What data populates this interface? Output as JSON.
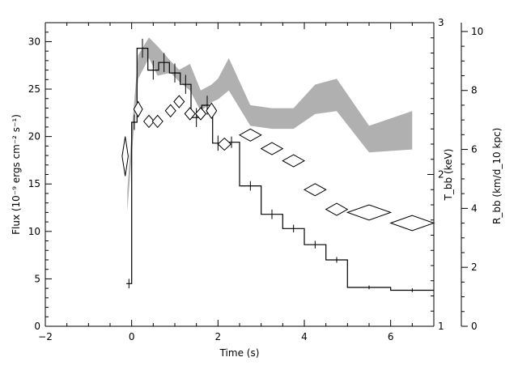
{
  "chart_data": {
    "type": "line",
    "xlabel": "Time (s)",
    "ylabel_left": "Flux (10⁻⁹ ergs cm⁻² s⁻¹)",
    "ylabel_right_inner": "T_bb (keV)",
    "ylabel_right_outer": "R_bb (km/d_10 kpc)",
    "xlim": [
      -2,
      7
    ],
    "ylim_left": [
      0,
      32
    ],
    "ylim_right_inner": [
      1,
      3
    ],
    "ylim_right_outer": [
      0,
      10.3
    ],
    "x_ticks": [
      -2,
      0,
      2,
      4,
      6
    ],
    "y_ticks_left": [
      0,
      5,
      10,
      15,
      20,
      25,
      30
    ],
    "y_ticks_right_inner": [
      1,
      2,
      3
    ],
    "y_ticks_right_outer": [
      0,
      2,
      4,
      6,
      8,
      10
    ],
    "grid": false,
    "flux_series": {
      "edges": [
        -0.125,
        0.0,
        0.125,
        0.375,
        0.625,
        0.875,
        1.125,
        1.375,
        1.625,
        1.875,
        2.125,
        2.5,
        3.0,
        3.5,
        4.0,
        4.5,
        5.0,
        6.0,
        7.0
      ],
      "values": [
        4.5,
        21.5,
        29.3,
        27.0,
        27.8,
        26.7,
        25.5,
        22.0,
        23.3,
        19.3,
        19.4,
        14.8,
        11.8,
        10.3,
        8.6,
        7.0,
        4.1,
        3.8
      ],
      "errors": [
        0.5,
        0.8,
        1.0,
        1.0,
        1.0,
        1.0,
        1.0,
        1.0,
        1.0,
        0.8,
        0.6,
        0.5,
        0.5,
        0.4,
        0.4,
        0.3,
        0.2,
        0.2
      ]
    },
    "kT_series": {
      "x": [
        -0.15,
        0.15,
        0.4,
        0.6,
        0.9,
        1.1,
        1.35,
        1.6,
        1.85,
        2.15,
        2.75,
        3.25,
        3.75,
        4.25,
        4.75,
        5.5,
        6.5
      ],
      "y": [
        2.12,
        2.43,
        2.35,
        2.35,
        2.42,
        2.48,
        2.4,
        2.4,
        2.42,
        2.2,
        2.26,
        2.17,
        2.09,
        1.9,
        1.77,
        1.75,
        1.68
      ],
      "dx": [
        0.07,
        0.1,
        0.12,
        0.12,
        0.12,
        0.12,
        0.12,
        0.12,
        0.12,
        0.15,
        0.25,
        0.25,
        0.25,
        0.25,
        0.25,
        0.5,
        0.5
      ],
      "dy": [
        0.13,
        0.05,
        0.04,
        0.04,
        0.04,
        0.04,
        0.04,
        0.04,
        0.05,
        0.04,
        0.04,
        0.04,
        0.04,
        0.04,
        0.04,
        0.05,
        0.05
      ]
    },
    "radius_band": {
      "x": [
        -0.1,
        0.0,
        0.15,
        0.4,
        0.6,
        0.9,
        1.1,
        1.35,
        1.6,
        1.85,
        2.0,
        2.25,
        2.75,
        3.25,
        3.75,
        4.25,
        4.75,
        5.5,
        6.5
      ],
      "lower": [
        3.9,
        5.8,
        8.4,
        9.1,
        8.5,
        8.6,
        8.3,
        8.0,
        7.3,
        7.6,
        7.7,
        8.0,
        6.8,
        6.7,
        6.7,
        7.2,
        7.3,
        5.9,
        6.0
      ],
      "upper": [
        4.6,
        6.6,
        9.2,
        9.8,
        9.5,
        9.0,
        8.7,
        8.9,
        8.0,
        8.2,
        8.4,
        9.1,
        7.5,
        7.4,
        7.4,
        8.2,
        8.4,
        6.8,
        7.3
      ]
    }
  }
}
